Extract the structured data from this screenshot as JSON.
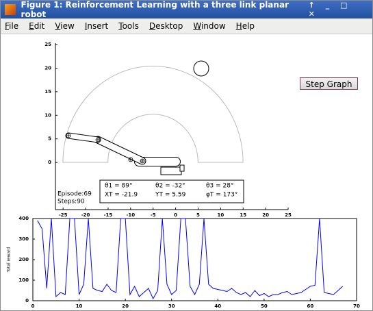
{
  "window": {
    "title": "Figure 1: Reinforcement Learning with a three link planar robot"
  },
  "menu": [
    "File",
    "Edit",
    "View",
    "Insert",
    "Tools",
    "Desktop",
    "Window",
    "Help"
  ],
  "button": "Step Graph",
  "chart_data": [
    {
      "type": "workspace",
      "xlim": [
        -26.7,
        25
      ],
      "ylim": [
        -10,
        25.3
      ],
      "xticks": [
        -25,
        -20,
        -15,
        -10,
        -5,
        0,
        5,
        10,
        15,
        20,
        25
      ],
      "yticks": [
        0,
        5,
        10,
        15,
        20,
        25
      ],
      "annotations": [
        "Episode:69",
        "Steps:90"
      ],
      "readouts": [
        "θ1 = 89°",
        "θ2 = -32°",
        "θ3 = 28°",
        "XT = -21.9",
        "YT = 5.59",
        "φT = 173°"
      ]
    },
    {
      "type": "line",
      "ylabel": "Total reward",
      "xlim": [
        0,
        70
      ],
      "ylim": [
        0,
        400
      ],
      "xticks": [
        0,
        10,
        20,
        30,
        40,
        50,
        60,
        70
      ],
      "yticks": [
        0,
        100,
        200,
        300,
        400
      ],
      "color": "#0000ff",
      "x": [
        1,
        2,
        3,
        4,
        5,
        6,
        7,
        8,
        9,
        10,
        11,
        12,
        13,
        14,
        15,
        16,
        17,
        18,
        19,
        20,
        21,
        22,
        23,
        24,
        25,
        26,
        27,
        28,
        29,
        30,
        31,
        32,
        33,
        34,
        35,
        36,
        37,
        38,
        39,
        40,
        41,
        42,
        43,
        44,
        45,
        46,
        47,
        48,
        49,
        50,
        51,
        52,
        53,
        54,
        55,
        56,
        57,
        58,
        59,
        60,
        61,
        62,
        63,
        64,
        65,
        66,
        67
      ],
      "values": [
        390,
        350,
        60,
        400,
        20,
        40,
        30,
        400,
        400,
        30,
        80,
        400,
        60,
        50,
        45,
        80,
        50,
        40,
        400,
        400,
        30,
        70,
        20,
        40,
        60,
        10,
        50,
        400,
        80,
        30,
        50,
        400,
        400,
        70,
        30,
        80,
        400,
        80,
        60,
        55,
        50,
        45,
        60,
        40,
        30,
        40,
        20,
        50,
        25,
        35,
        20,
        30,
        30,
        40,
        45,
        30,
        35,
        40,
        55,
        70,
        75,
        400,
        40,
        35,
        30,
        50,
        70
      ]
    }
  ]
}
